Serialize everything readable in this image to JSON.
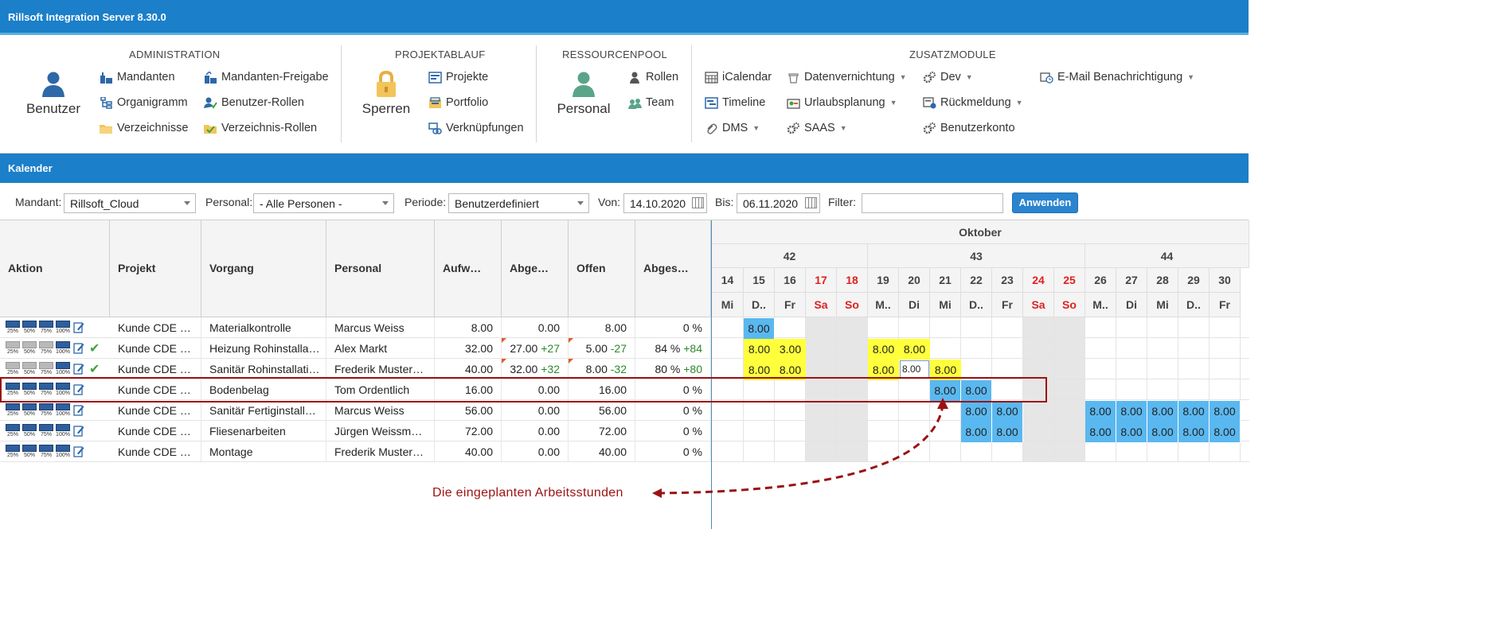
{
  "app_title": "Rillsoft Integration Server 8.30.0",
  "ribbon": {
    "groups": {
      "admin": "ADMINISTRATION",
      "projekt": "PROJEKTABLAUF",
      "ressourcen": "RESSOURCENPOOL",
      "zusatz": "ZUSATZMODULE"
    },
    "admin": {
      "benutzer": "Benutzer",
      "mandanten": "Mandanten",
      "mandanten_freigabe": "Mandanten-Freigabe",
      "organigramm": "Organigramm",
      "benutzer_rollen": "Benutzer-Rollen",
      "verzeichnisse": "Verzeichnisse",
      "verzeichnis_rollen": "Verzeichnis-Rollen"
    },
    "projekt": {
      "sperren": "Sperren",
      "projekte": "Projekte",
      "portfolio": "Portfolio",
      "verknuepfungen": "Verknüpfungen"
    },
    "ressourcen": {
      "personal": "Personal",
      "rollen": "Rollen",
      "team": "Team"
    },
    "zusatz": {
      "icalendar": "iCalendar",
      "timeline": "Timeline",
      "dms": "DMS",
      "datenvernichtung": "Datenvernichtung",
      "urlaubsplanung": "Urlaubsplanung",
      "saas": "SAAS",
      "dev": "Dev",
      "rueckmeldung": "Rückmeldung",
      "benutzerkonto": "Benutzerkonto",
      "email": "E-Mail Benachrichtigung"
    }
  },
  "section_title": "Kalender",
  "filters": {
    "mandant_label": "Mandant:",
    "mandant_value": "Rillsoft_Cloud",
    "personal_label": "Personal:",
    "personal_value": "- Alle Personen -",
    "periode_label": "Periode:",
    "periode_value": "Benutzerdefiniert",
    "von_label": "Von:",
    "von_value": "14.10.2020",
    "bis_label": "Bis:",
    "bis_value": "06.11.2020",
    "filter_label": "Filter:",
    "filter_value": "",
    "apply": "Anwenden"
  },
  "columns": [
    "Aktion",
    "Projekt",
    "Vorgang",
    "Personal",
    "Aufw…",
    "Abge…",
    "Offen",
    "Abges…"
  ],
  "action_labels": [
    "25%",
    "50%",
    "75%",
    "100%"
  ],
  "rows": [
    {
      "projekt": "Kunde CDE …",
      "vorgang": "Materialkontrolle",
      "personal": "Marcus Weiss",
      "aufwand": "8.00",
      "abge": "0.00",
      "abge_delta": "",
      "offen": "8.00",
      "offen_delta": "",
      "abges": "0 %",
      "abges_delta": "",
      "done": false,
      "grey": 0
    },
    {
      "projekt": "Kunde CDE …",
      "vorgang": "Heizung Rohinstalla…",
      "personal": "Alex Markt",
      "aufwand": "32.00",
      "abge": "27.00",
      "abge_delta": "+27",
      "offen": "5.00",
      "offen_delta": "-27",
      "abges": "84 %",
      "abges_delta": "+84",
      "done": true,
      "grey": 3
    },
    {
      "projekt": "Kunde CDE …",
      "vorgang": "Sanitär Rohinstallati…",
      "personal": "Frederik Muster…",
      "aufwand": "40.00",
      "abge": "32.00",
      "abge_delta": "+32",
      "offen": "8.00",
      "offen_delta": "-32",
      "abges": "80 %",
      "abges_delta": "+80",
      "done": true,
      "grey": 3
    },
    {
      "projekt": "Kunde CDE …",
      "vorgang": "Bodenbelag",
      "personal": "Tom Ordentlich",
      "aufwand": "16.00",
      "abge": "0.00",
      "abge_delta": "",
      "offen": "16.00",
      "offen_delta": "",
      "abges": "0 %",
      "abges_delta": "",
      "done": false,
      "grey": 0
    },
    {
      "projekt": "Kunde CDE …",
      "vorgang": "Sanitär Fertiginstall…",
      "personal": "Marcus Weiss",
      "aufwand": "56.00",
      "abge": "0.00",
      "abge_delta": "",
      "offen": "56.00",
      "offen_delta": "",
      "abges": "0 %",
      "abges_delta": "",
      "done": false,
      "grey": 0
    },
    {
      "projekt": "Kunde CDE …",
      "vorgang": "Fliesenarbeiten",
      "personal": "Jürgen Weissm…",
      "aufwand": "72.00",
      "abge": "0.00",
      "abge_delta": "",
      "offen": "72.00",
      "offen_delta": "",
      "abges": "0 %",
      "abges_delta": "",
      "done": false,
      "grey": 0
    },
    {
      "projekt": "Kunde CDE …",
      "vorgang": "Montage",
      "personal": "Frederik Muster…",
      "aufwand": "40.00",
      "abge": "0.00",
      "abge_delta": "",
      "offen": "40.00",
      "offen_delta": "",
      "abges": "0 %",
      "abges_delta": "",
      "done": false,
      "grey": 0
    }
  ],
  "calendar": {
    "month": "Oktober",
    "weeks": [
      {
        "label": "42",
        "days": 5
      },
      {
        "label": "43",
        "days": 7
      },
      {
        "label": "44",
        "days": 5
      }
    ],
    "days": [
      {
        "d": "14",
        "w": "Mi",
        "we": false
      },
      {
        "d": "15",
        "w": "D..",
        "we": false
      },
      {
        "d": "16",
        "w": "Fr",
        "we": false
      },
      {
        "d": "17",
        "w": "Sa",
        "we": true
      },
      {
        "d": "18",
        "w": "So",
        "we": true
      },
      {
        "d": "19",
        "w": "M..",
        "we": false
      },
      {
        "d": "20",
        "w": "Di",
        "we": false
      },
      {
        "d": "21",
        "w": "Mi",
        "we": false
      },
      {
        "d": "22",
        "w": "D..",
        "we": false
      },
      {
        "d": "23",
        "w": "Fr",
        "we": false
      },
      {
        "d": "24",
        "w": "Sa",
        "we": true
      },
      {
        "d": "25",
        "w": "So",
        "we": true
      },
      {
        "d": "26",
        "w": "M..",
        "we": false
      },
      {
        "d": "27",
        "w": "Di",
        "we": false
      },
      {
        "d": "28",
        "w": "Mi",
        "we": false
      },
      {
        "d": "29",
        "w": "D..",
        "we": false
      },
      {
        "d": "30",
        "w": "Fr",
        "we": false
      }
    ],
    "entries": [
      {
        "row": 0,
        "day": 1,
        "v": "8.00",
        "c": "blue"
      },
      {
        "row": 1,
        "day": 1,
        "v": "8.00",
        "c": "yellow"
      },
      {
        "row": 1,
        "day": 2,
        "v": "3.00",
        "c": "yellow"
      },
      {
        "row": 1,
        "day": 5,
        "v": "8.00",
        "c": "yellow"
      },
      {
        "row": 1,
        "day": 6,
        "v": "8.00",
        "c": "yellow"
      },
      {
        "row": 2,
        "day": 1,
        "v": "8.00",
        "c": "yellow"
      },
      {
        "row": 2,
        "day": 2,
        "v": "8.00",
        "c": "yellow"
      },
      {
        "row": 2,
        "day": 5,
        "v": "8.00",
        "c": "yellow"
      },
      {
        "row": 2,
        "day": 6,
        "v": "8.00",
        "c": "input"
      },
      {
        "row": 2,
        "day": 7,
        "v": "8.00",
        "c": "yellow"
      },
      {
        "row": 3,
        "day": 7,
        "v": "8.00",
        "c": "blue"
      },
      {
        "row": 3,
        "day": 8,
        "v": "8.00",
        "c": "blue"
      },
      {
        "row": 4,
        "day": 8,
        "v": "8.00",
        "c": "blue"
      },
      {
        "row": 4,
        "day": 9,
        "v": "8.00",
        "c": "blue"
      },
      {
        "row": 4,
        "day": 12,
        "v": "8.00",
        "c": "blue"
      },
      {
        "row": 4,
        "day": 13,
        "v": "8.00",
        "c": "blue"
      },
      {
        "row": 4,
        "day": 14,
        "v": "8.00",
        "c": "blue"
      },
      {
        "row": 4,
        "day": 15,
        "v": "8.00",
        "c": "blue"
      },
      {
        "row": 4,
        "day": 16,
        "v": "8.00",
        "c": "blue"
      },
      {
        "row": 5,
        "day": 8,
        "v": "8.00",
        "c": "blue"
      },
      {
        "row": 5,
        "day": 9,
        "v": "8.00",
        "c": "blue"
      },
      {
        "row": 5,
        "day": 12,
        "v": "8.00",
        "c": "blue"
      },
      {
        "row": 5,
        "day": 13,
        "v": "8.00",
        "c": "blue"
      },
      {
        "row": 5,
        "day": 14,
        "v": "8.00",
        "c": "blue"
      },
      {
        "row": 5,
        "day": 15,
        "v": "8.00",
        "c": "blue"
      },
      {
        "row": 5,
        "day": 16,
        "v": "8.00",
        "c": "blue"
      }
    ]
  },
  "annotation": "Die eingeplanten Arbeitsstunden",
  "colors": {
    "header_blue": "#1b7fc9",
    "yellow": "#ffff3c",
    "blue": "#5ab8f0",
    "annotation_red": "#9b1212",
    "weekend_red": "#e02020"
  }
}
